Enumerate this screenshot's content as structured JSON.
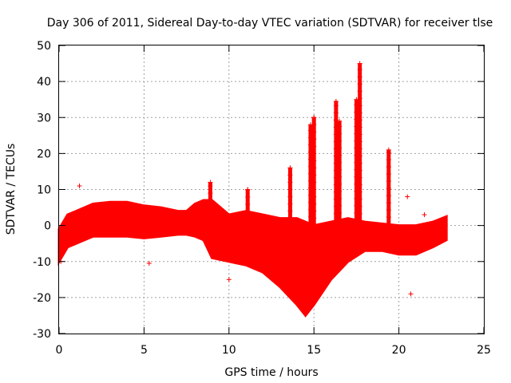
{
  "chart_data": {
    "type": "scatter",
    "title": "Day 306 of 2011, Sidereal Day-to-day VTEC variation (SDTVAR) for receiver tlse",
    "xlabel": "GPS time / hours",
    "ylabel": "SDTVAR / TECUs",
    "xlim": [
      0,
      25
    ],
    "ylim": [
      -30,
      50
    ],
    "xticks": [
      "0",
      "5",
      "10",
      "15",
      "20",
      "25"
    ],
    "yticks": [
      "-30",
      "-20",
      "-10",
      "0",
      "10",
      "20",
      "30",
      "40",
      "50"
    ],
    "grid": true,
    "marker": "+",
    "series_color": "#ff0000",
    "envelope": [
      {
        "x": 0.0,
        "min": -10,
        "max": -1
      },
      {
        "x": 0.5,
        "min": -6,
        "max": 3
      },
      {
        "x": 1.0,
        "min": -5,
        "max": 4
      },
      {
        "x": 2.0,
        "min": -3,
        "max": 6
      },
      {
        "x": 3.0,
        "min": -3,
        "max": 6.5
      },
      {
        "x": 4.0,
        "min": -3,
        "max": 6.5
      },
      {
        "x": 5.0,
        "min": -3.5,
        "max": 5.5
      },
      {
        "x": 6.0,
        "min": -3,
        "max": 5
      },
      {
        "x": 7.0,
        "min": -2.5,
        "max": 4
      },
      {
        "x": 7.5,
        "min": -2.5,
        "max": 4
      },
      {
        "x": 8.0,
        "min": -3,
        "max": 6
      },
      {
        "x": 8.5,
        "min": -4,
        "max": 7
      },
      {
        "x": 9.0,
        "min": -9,
        "max": 7
      },
      {
        "x": 10.0,
        "min": -10,
        "max": 3
      },
      {
        "x": 11.0,
        "min": -11,
        "max": 4
      },
      {
        "x": 12.0,
        "min": -13,
        "max": 3
      },
      {
        "x": 13.0,
        "min": -17,
        "max": 2
      },
      {
        "x": 14.0,
        "min": -22,
        "max": 2
      },
      {
        "x": 14.5,
        "min": -25,
        "max": 1
      },
      {
        "x": 15.0,
        "min": -22,
        "max": 0
      },
      {
        "x": 16.0,
        "min": -15,
        "max": 1
      },
      {
        "x": 17.0,
        "min": -10,
        "max": 2
      },
      {
        "x": 18.0,
        "min": -7,
        "max": 1
      },
      {
        "x": 19.0,
        "min": -7,
        "max": 0.5
      },
      {
        "x": 20.0,
        "min": -8,
        "max": 0
      },
      {
        "x": 21.0,
        "min": -8,
        "max": 0
      },
      {
        "x": 22.0,
        "min": -6,
        "max": 1
      },
      {
        "x": 22.8,
        "min": -4,
        "max": 2.5
      }
    ],
    "spikes": [
      {
        "x": 8.9,
        "peak": 12
      },
      {
        "x": 11.1,
        "peak": 10
      },
      {
        "x": 13.6,
        "peak": 16
      },
      {
        "x": 14.8,
        "peak": 28
      },
      {
        "x": 15.0,
        "peak": 30
      },
      {
        "x": 16.3,
        "peak": 34.5
      },
      {
        "x": 16.5,
        "peak": 29
      },
      {
        "x": 17.5,
        "peak": 35
      },
      {
        "x": 17.7,
        "peak": 45
      },
      {
        "x": 19.4,
        "peak": 21
      }
    ],
    "outliers": [
      {
        "x": 0.1,
        "y": -10
      },
      {
        "x": 1.2,
        "y": 11
      },
      {
        "x": 5.3,
        "y": -10.5
      },
      {
        "x": 10.0,
        "y": -15
      },
      {
        "x": 20.5,
        "y": 8
      },
      {
        "x": 20.7,
        "y": -19
      },
      {
        "x": 21.5,
        "y": 3
      }
    ]
  }
}
